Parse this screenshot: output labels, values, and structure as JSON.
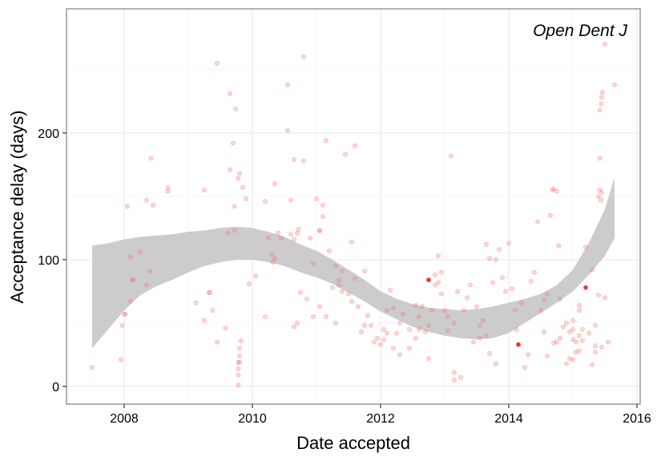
{
  "chart_data": {
    "type": "scatter",
    "title": "",
    "annotation": "Open Dent J",
    "xlabel": "Date accepted",
    "ylabel": "Acceptance delay (days)",
    "xlim": [
      2007.1,
      2016.05
    ],
    "ylim": [
      -14,
      298
    ],
    "xticks": [
      2008,
      2010,
      2012,
      2014,
      2016
    ],
    "yticks": [
      0,
      100,
      200
    ],
    "grid": true,
    "legend": "none",
    "colors": {
      "points": "#f07070",
      "highlight": "#e02020",
      "band": "#cccccc",
      "panel_border": "#999999",
      "grid_major": "#ebebeb",
      "grid_minor": "#f5f5f5"
    },
    "smooth_band": [
      {
        "x": 2007.5,
        "lo": 30,
        "hi": 111
      },
      {
        "x": 2007.75,
        "lo": 45,
        "hi": 113
      },
      {
        "x": 2008.0,
        "lo": 60,
        "hi": 116
      },
      {
        "x": 2008.25,
        "lo": 72,
        "hi": 118
      },
      {
        "x": 2008.5,
        "lo": 79,
        "hi": 119
      },
      {
        "x": 2008.75,
        "lo": 84,
        "hi": 120
      },
      {
        "x": 2009.0,
        "lo": 90,
        "hi": 122
      },
      {
        "x": 2009.25,
        "lo": 95,
        "hi": 123
      },
      {
        "x": 2009.5,
        "lo": 98,
        "hi": 125
      },
      {
        "x": 2009.75,
        "lo": 100,
        "hi": 126
      },
      {
        "x": 2010.0,
        "lo": 100,
        "hi": 125
      },
      {
        "x": 2010.25,
        "lo": 98,
        "hi": 122
      },
      {
        "x": 2010.5,
        "lo": 95,
        "hi": 118
      },
      {
        "x": 2010.75,
        "lo": 90,
        "hi": 112
      },
      {
        "x": 2011.0,
        "lo": 86,
        "hi": 107
      },
      {
        "x": 2011.25,
        "lo": 81,
        "hi": 100
      },
      {
        "x": 2011.5,
        "lo": 74,
        "hi": 92
      },
      {
        "x": 2011.75,
        "lo": 67,
        "hi": 84
      },
      {
        "x": 2012.0,
        "lo": 59,
        "hi": 75
      },
      {
        "x": 2012.25,
        "lo": 53,
        "hi": 69
      },
      {
        "x": 2012.5,
        "lo": 47,
        "hi": 65
      },
      {
        "x": 2012.75,
        "lo": 43,
        "hi": 62
      },
      {
        "x": 2013.0,
        "lo": 40,
        "hi": 61
      },
      {
        "x": 2013.25,
        "lo": 38,
        "hi": 60
      },
      {
        "x": 2013.5,
        "lo": 37,
        "hi": 61
      },
      {
        "x": 2013.75,
        "lo": 38,
        "hi": 63
      },
      {
        "x": 2014.0,
        "lo": 42,
        "hi": 66
      },
      {
        "x": 2014.25,
        "lo": 50,
        "hi": 69
      },
      {
        "x": 2014.5,
        "lo": 58,
        "hi": 73
      },
      {
        "x": 2014.75,
        "lo": 66,
        "hi": 80
      },
      {
        "x": 2015.0,
        "lo": 75,
        "hi": 92
      },
      {
        "x": 2015.25,
        "lo": 88,
        "hi": 113
      },
      {
        "x": 2015.5,
        "lo": 103,
        "hi": 140
      },
      {
        "x": 2015.65,
        "lo": 117,
        "hi": 165
      }
    ],
    "points": [
      [
        2007.5,
        15
      ],
      [
        2007.95,
        21
      ],
      [
        2007.97,
        48
      ],
      [
        2008.0,
        57
      ],
      [
        2008.02,
        57
      ],
      [
        2008.05,
        142
      ],
      [
        2008.1,
        67
      ],
      [
        2008.1,
        102
      ],
      [
        2008.12,
        84
      ],
      [
        2008.15,
        84
      ],
      [
        2008.25,
        106
      ],
      [
        2008.35,
        147
      ],
      [
        2008.35,
        80
      ],
      [
        2008.4,
        91
      ],
      [
        2008.45,
        143
      ],
      [
        2008.42,
        180
      ],
      [
        2008.68,
        157
      ],
      [
        2008.68,
        154
      ],
      [
        2009.12,
        66
      ],
      [
        2009.25,
        155
      ],
      [
        2009.25,
        52
      ],
      [
        2009.32,
        74
      ],
      [
        2009.34,
        74
      ],
      [
        2009.38,
        60
      ],
      [
        2009.45,
        35
      ],
      [
        2009.45,
        255
      ],
      [
        2009.58,
        46
      ],
      [
        2009.62,
        121
      ],
      [
        2009.65,
        231
      ],
      [
        2009.65,
        171
      ],
      [
        2009.7,
        192
      ],
      [
        2009.72,
        142
      ],
      [
        2009.72,
        123
      ],
      [
        2009.74,
        219
      ],
      [
        2009.78,
        164
      ],
      [
        2009.8,
        168
      ],
      [
        2009.85,
        157
      ],
      [
        2009.9,
        148
      ],
      [
        2009.95,
        81
      ],
      [
        2010.05,
        87
      ],
      [
        2010.2,
        146
      ],
      [
        2010.25,
        117
      ],
      [
        2010.3,
        104
      ],
      [
        2010.32,
        98
      ],
      [
        2010.35,
        160
      ],
      [
        2010.4,
        121
      ],
      [
        2009.78,
        9
      ],
      [
        2009.78,
        14
      ],
      [
        2009.78,
        19
      ],
      [
        2009.78,
        1
      ],
      [
        2009.8,
        19
      ],
      [
        2009.8,
        24
      ],
      [
        2009.8,
        30
      ],
      [
        2009.82,
        36
      ],
      [
        2010.2,
        55
      ],
      [
        2010.35,
        101
      ],
      [
        2010.45,
        117
      ],
      [
        2010.6,
        120
      ],
      [
        2010.65,
        116
      ],
      [
        2010.7,
        121
      ],
      [
        2010.72,
        124
      ],
      [
        2010.55,
        202
      ],
      [
        2010.55,
        238
      ],
      [
        2010.6,
        147
      ],
      [
        2010.65,
        179
      ],
      [
        2010.8,
        178
      ],
      [
        2010.8,
        260
      ],
      [
        2010.9,
        117
      ],
      [
        2010.95,
        97
      ],
      [
        2011.0,
        148
      ],
      [
        2011.05,
        123
      ],
      [
        2011.05,
        123
      ],
      [
        2011.1,
        134
      ],
      [
        2011.1,
        143
      ],
      [
        2011.15,
        194
      ],
      [
        2011.2,
        107
      ],
      [
        2011.3,
        95
      ],
      [
        2011.35,
        84
      ],
      [
        2011.35,
        80
      ],
      [
        2011.4,
        91
      ],
      [
        2011.45,
        183
      ],
      [
        2011.55,
        114
      ],
      [
        2011.6,
        190
      ],
      [
        2011.6,
        85
      ],
      [
        2011.75,
        91
      ],
      [
        2011.8,
        56
      ],
      [
        2011.85,
        48
      ],
      [
        2011.9,
        35
      ],
      [
        2011.95,
        38
      ],
      [
        2012.0,
        33
      ],
      [
        2012.05,
        37
      ],
      [
        2012.1,
        60
      ],
      [
        2012.15,
        76
      ],
      [
        2010.65,
        47
      ],
      [
        2010.7,
        50
      ],
      [
        2010.75,
        74
      ],
      [
        2010.85,
        69
      ],
      [
        2010.95,
        55
      ],
      [
        2011.05,
        63
      ],
      [
        2011.15,
        55
      ],
      [
        2011.25,
        78
      ],
      [
        2011.3,
        50
      ],
      [
        2011.4,
        75
      ],
      [
        2011.5,
        73
      ],
      [
        2011.55,
        67
      ],
      [
        2011.65,
        63
      ],
      [
        2011.7,
        43
      ],
      [
        2011.75,
        48
      ],
      [
        2012.2,
        62
      ],
      [
        2012.25,
        42
      ],
      [
        2012.3,
        50
      ],
      [
        2012.35,
        57
      ],
      [
        2012.45,
        45
      ],
      [
        2012.55,
        64
      ],
      [
        2012.6,
        55
      ],
      [
        2012.65,
        63
      ],
      [
        2012.75,
        48
      ],
      [
        2012.8,
        60
      ],
      [
        2012.85,
        80
      ],
      [
        2012.9,
        82
      ],
      [
        2012.9,
        103
      ],
      [
        2012.95,
        73
      ],
      [
        2012.75,
        84
      ],
      [
        2012.85,
        88
      ],
      [
        2012.95,
        90
      ],
      [
        2013.0,
        60
      ],
      [
        2013.05,
        55
      ],
      [
        2013.1,
        182
      ],
      [
        2013.15,
        50
      ],
      [
        2013.2,
        75
      ],
      [
        2013.3,
        60
      ],
      [
        2013.35,
        70
      ],
      [
        2013.4,
        80
      ],
      [
        2013.5,
        63
      ],
      [
        2013.55,
        48
      ],
      [
        2013.6,
        52
      ],
      [
        2013.65,
        112
      ],
      [
        2013.7,
        101
      ],
      [
        2013.75,
        82
      ],
      [
        2013.8,
        100
      ],
      [
        2013.85,
        108
      ],
      [
        2013.9,
        86
      ],
      [
        2013.95,
        75
      ],
      [
        2014.0,
        113
      ],
      [
        2014.05,
        77
      ],
      [
        2014.1,
        60
      ],
      [
        2014.12,
        45
      ],
      [
        2014.15,
        33
      ],
      [
        2014.2,
        66
      ],
      [
        2014.3,
        25
      ],
      [
        2014.35,
        83
      ],
      [
        2014.4,
        90
      ],
      [
        2014.45,
        130
      ],
      [
        2014.5,
        60
      ],
      [
        2014.55,
        68
      ],
      [
        2014.6,
        73
      ],
      [
        2014.65,
        135
      ],
      [
        2014.68,
        155
      ],
      [
        2014.7,
        156
      ],
      [
        2014.75,
        154
      ],
      [
        2014.78,
        111
      ],
      [
        2014.8,
        69
      ],
      [
        2014.6,
        24
      ],
      [
        2014.7,
        34
      ],
      [
        2014.75,
        35
      ],
      [
        2014.8,
        38
      ],
      [
        2014.85,
        47
      ],
      [
        2014.9,
        50
      ],
      [
        2014.95,
        43
      ],
      [
        2015.0,
        37
      ],
      [
        2015.0,
        52
      ],
      [
        2015.0,
        45
      ],
      [
        2015.05,
        35
      ],
      [
        2015.05,
        27
      ],
      [
        2015.1,
        28
      ],
      [
        2015.1,
        60
      ],
      [
        2015.1,
        64
      ],
      [
        2015.15,
        45
      ],
      [
        2015.2,
        110
      ],
      [
        2015.25,
        42
      ],
      [
        2015.3,
        92
      ],
      [
        2015.35,
        32
      ],
      [
        2015.35,
        48
      ],
      [
        2015.4,
        72
      ],
      [
        2015.4,
        150
      ],
      [
        2015.42,
        155
      ],
      [
        2015.44,
        147
      ],
      [
        2015.45,
        153
      ],
      [
        2015.42,
        180
      ],
      [
        2015.42,
        218
      ],
      [
        2015.44,
        223
      ],
      [
        2015.45,
        228
      ],
      [
        2015.46,
        232
      ],
      [
        2015.5,
        270
      ],
      [
        2015.5,
        70
      ],
      [
        2015.55,
        35
      ],
      [
        2015.65,
        238
      ],
      [
        2012.05,
        45
      ],
      [
        2012.1,
        42
      ],
      [
        2012.2,
        30
      ],
      [
        2012.3,
        25
      ],
      [
        2012.45,
        30
      ],
      [
        2012.55,
        38
      ],
      [
        2012.6,
        45
      ],
      [
        2012.7,
        43
      ],
      [
        2012.75,
        22
      ],
      [
        2013.05,
        44
      ],
      [
        2013.15,
        11
      ],
      [
        2013.15,
        5
      ],
      [
        2013.25,
        7
      ],
      [
        2013.45,
        35
      ],
      [
        2013.55,
        38
      ],
      [
        2013.65,
        40
      ],
      [
        2013.7,
        26
      ],
      [
        2013.8,
        18
      ],
      [
        2014.25,
        15
      ],
      [
        2014.55,
        43
      ],
      [
        2014.9,
        18
      ],
      [
        2014.95,
        22
      ],
      [
        2015.0,
        21
      ],
      [
        2015.1,
        40
      ],
      [
        2015.15,
        36
      ],
      [
        2015.3,
        17
      ],
      [
        2015.35,
        27
      ],
      [
        2015.45,
        31
      ]
    ],
    "highlight_points": [
      [
        2012.75,
        84
      ],
      [
        2014.15,
        33
      ],
      [
        2015.2,
        78
      ]
    ]
  }
}
